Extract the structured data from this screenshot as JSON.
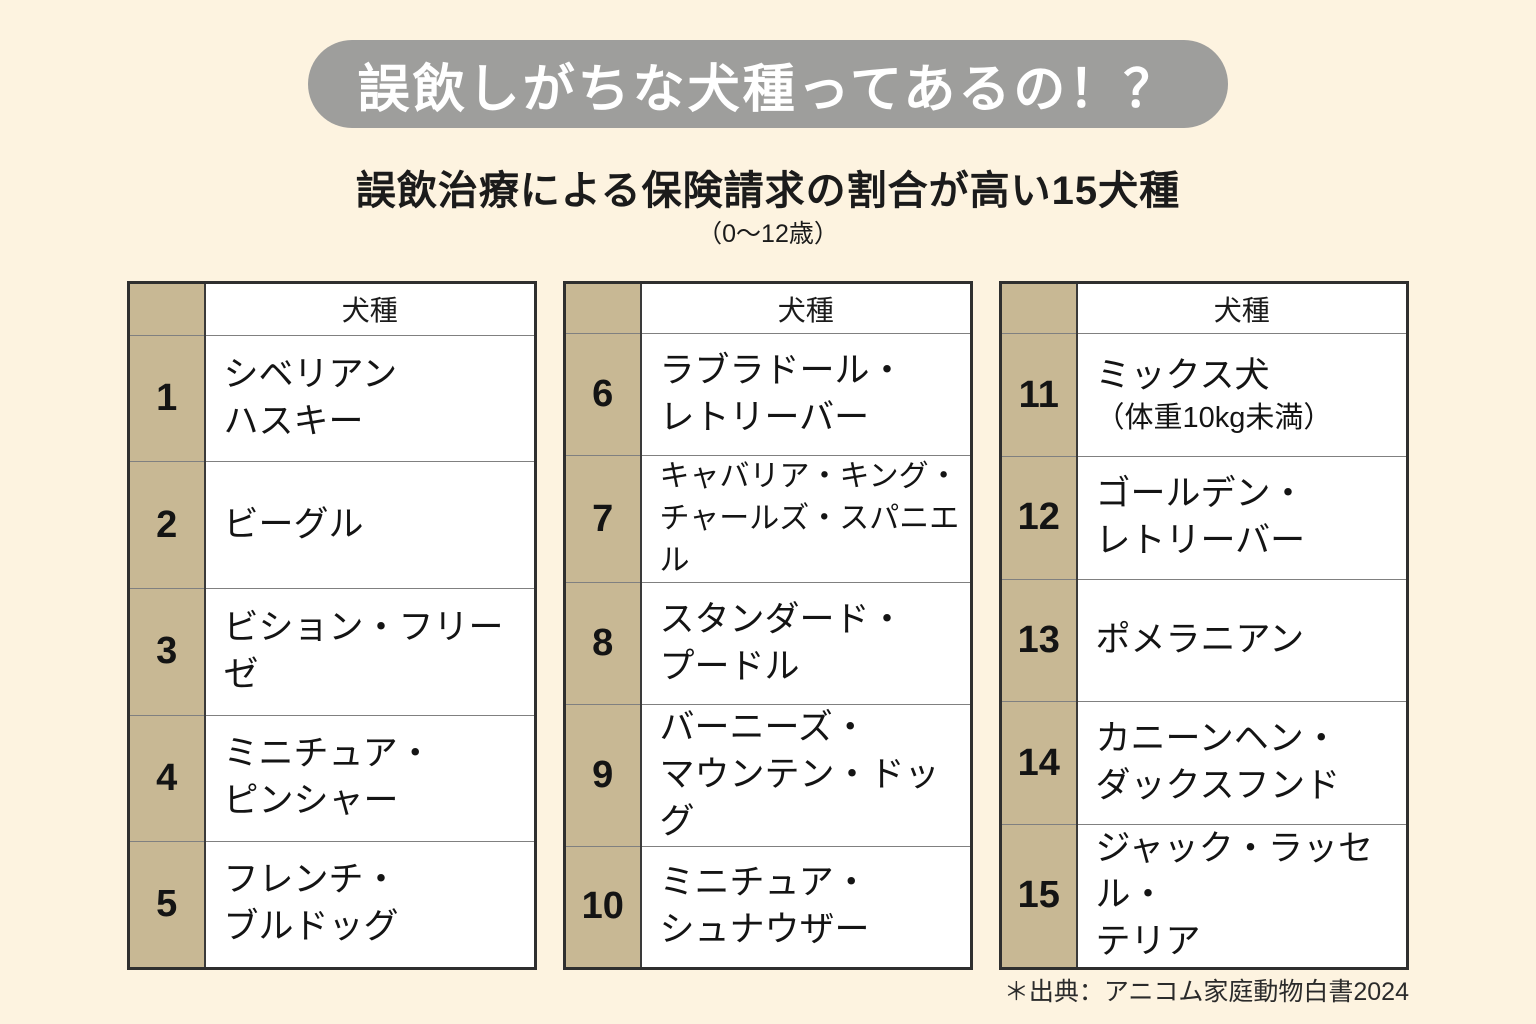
{
  "colors": {
    "background": "#FDF3E0",
    "pill_background": "#9E9E9C",
    "pill_text": "#FFFFFF",
    "rank_column": "#C8B894",
    "text": "#1B1B1B",
    "border_outer": "#2F2F2F",
    "border_inner": "#808080"
  },
  "header": {
    "title": "誤飲しがちな犬種ってあるの！？"
  },
  "subtitle": {
    "text": "誤飲治療による保険請求の割合が高い15犬種",
    "age_note": "（0〜12歳）"
  },
  "tables": [
    {
      "header": "犬種",
      "rows": [
        {
          "rank": "1",
          "name": "シベリアン\nハスキー"
        },
        {
          "rank": "2",
          "name": "ビーグル"
        },
        {
          "rank": "3",
          "name": "ビション・フリーゼ"
        },
        {
          "rank": "4",
          "name": "ミニチュア・\nピンシャー"
        },
        {
          "rank": "5",
          "name": "フレンチ・\nブルドッグ"
        }
      ]
    },
    {
      "header": "犬種",
      "rows": [
        {
          "rank": "6",
          "name": "ラブラドール・\nレトリーバー"
        },
        {
          "rank": "7",
          "name": "キャバリア・キング・\nチャールズ・スパニエル"
        },
        {
          "rank": "8",
          "name": "スタンダード・\nプードル"
        },
        {
          "rank": "9",
          "name": "バーニーズ・\nマウンテン・ドッグ"
        },
        {
          "rank": "10",
          "name": "ミニチュア・\nシュナウザー"
        }
      ]
    },
    {
      "header": "犬種",
      "rows": [
        {
          "rank": "11",
          "name": "ミックス犬",
          "note": "（体重10kg未満）"
        },
        {
          "rank": "12",
          "name": "ゴールデン・\nレトリーバー"
        },
        {
          "rank": "13",
          "name": "ポメラニアン"
        },
        {
          "rank": "14",
          "name": "カニーンヘン・\nダックスフンド"
        },
        {
          "rank": "15",
          "name": "ジャック・ラッセル・\nテリア"
        }
      ]
    }
  ],
  "footer": {
    "source": "＊出典：アニコム家庭動物白書2024"
  },
  "chart_data": {
    "type": "table",
    "title": "誤飲治療による保険請求の割合が高い15犬種",
    "subtitle": "（0〜12歳）",
    "columns": [
      "",
      "犬種"
    ],
    "rows": [
      [
        1,
        "シベリアンハスキー"
      ],
      [
        2,
        "ビーグル"
      ],
      [
        3,
        "ビション・フリーゼ"
      ],
      [
        4,
        "ミニチュア・ピンシャー"
      ],
      [
        5,
        "フレンチ・ブルドッグ"
      ],
      [
        6,
        "ラブラドール・レトリーバー"
      ],
      [
        7,
        "キャバリア・キング・チャールズ・スパニエル"
      ],
      [
        8,
        "スタンダード・プードル"
      ],
      [
        9,
        "バーニーズ・マウンテン・ドッグ"
      ],
      [
        10,
        "ミニチュア・シュナウザー"
      ],
      [
        11,
        "ミックス犬（体重10kg未満）"
      ],
      [
        12,
        "ゴールデン・レトリーバー"
      ],
      [
        13,
        "ポメラニアン"
      ],
      [
        14,
        "カニーンヘン・ダックスフンド"
      ],
      [
        15,
        "ジャック・ラッセル・テリア"
      ]
    ],
    "source": "＊出典：アニコム家庭動物白書2024",
    "layout": "three-column ranking table, rank column tan, breed column white"
  }
}
